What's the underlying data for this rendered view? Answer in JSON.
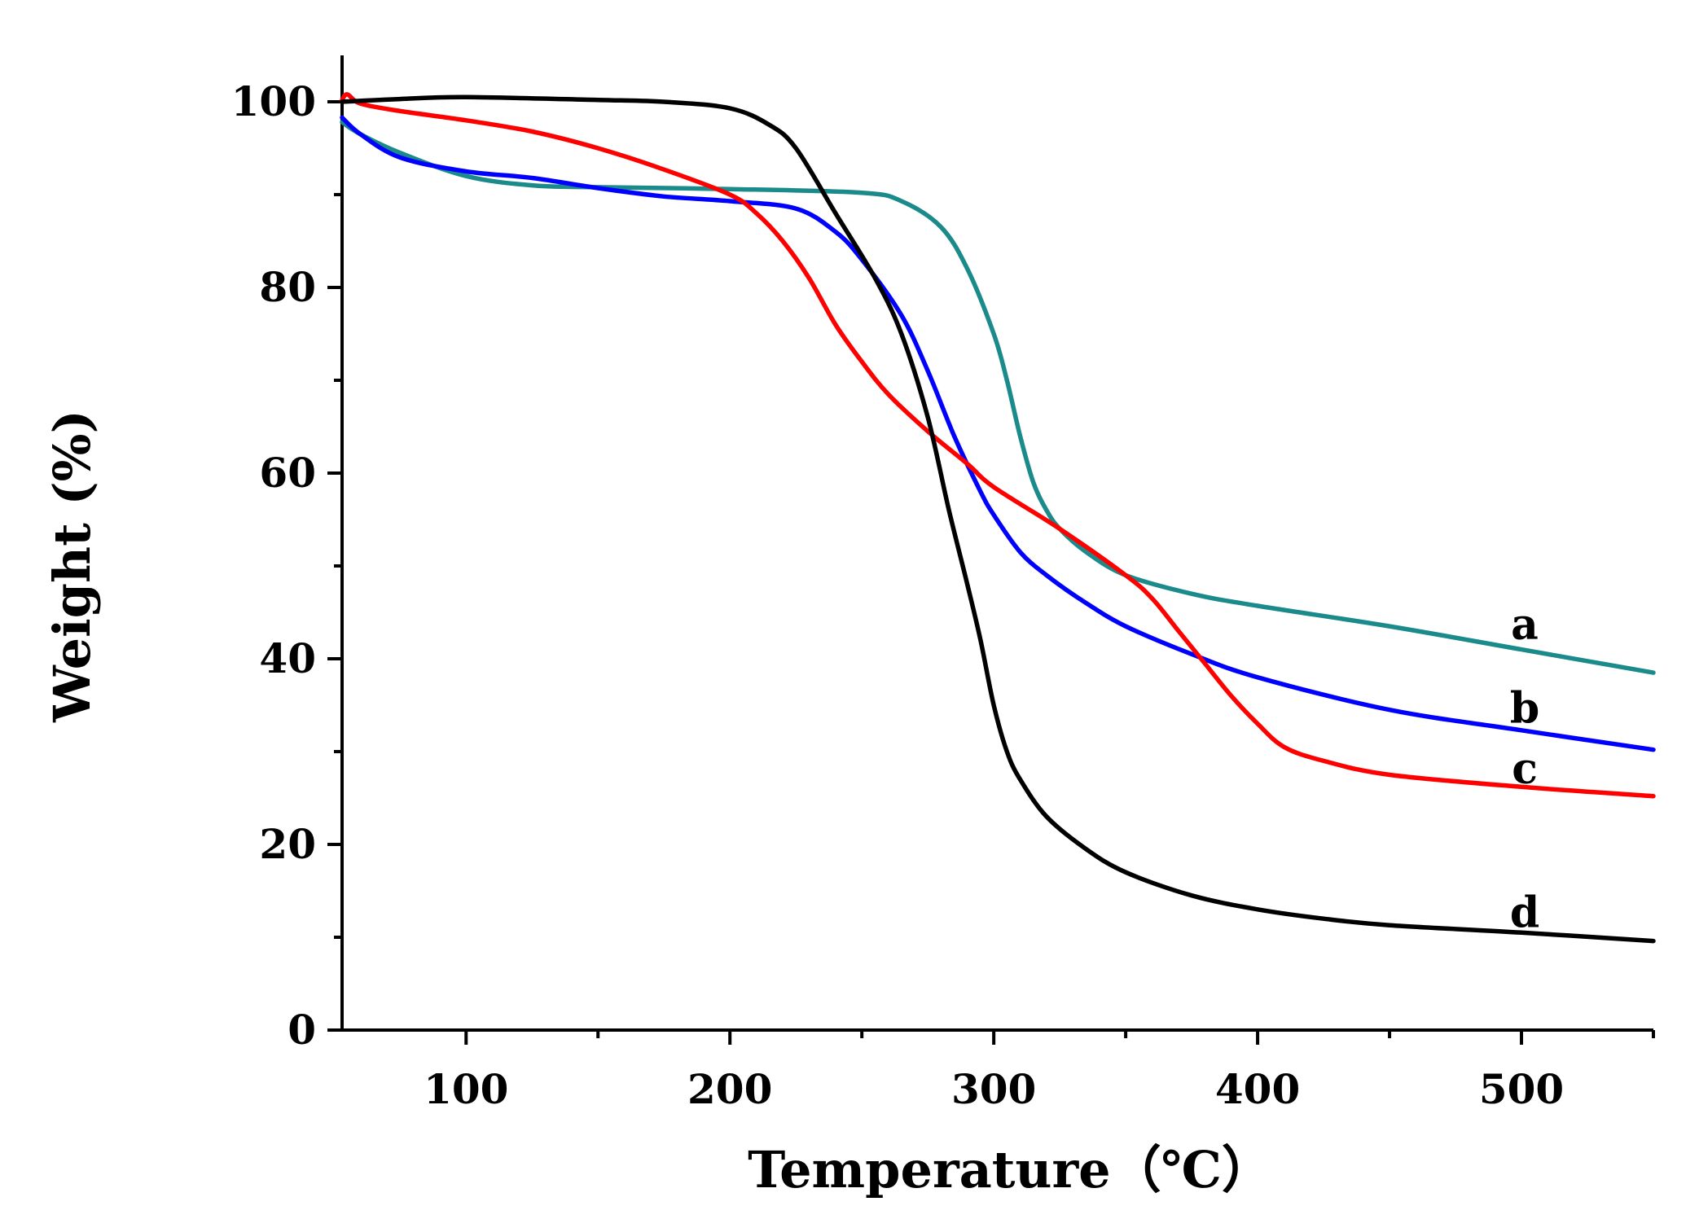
{
  "chart_data": {
    "type": "line",
    "title": "",
    "xlabel": "Temperature（℃）",
    "ylabel": "Weight (%)",
    "xlim": [
      53,
      550
    ],
    "ylim": [
      0,
      105
    ],
    "xticks": [
      100,
      200,
      300,
      400,
      500
    ],
    "yticks": [
      0,
      20,
      40,
      60,
      80,
      100
    ],
    "xtick_labels": [
      "100",
      "200",
      "300",
      "400",
      "500"
    ],
    "ytick_labels": [
      "0",
      "20",
      "40",
      "60",
      "80",
      "100"
    ],
    "grid": false,
    "series": [
      {
        "name": "a",
        "color": "#1b8a8a",
        "x": [
          53,
          60,
          75,
          100,
          125,
          150,
          200,
          250,
          265,
          280,
          290,
          300,
          305,
          310,
          315,
          320,
          325,
          335,
          350,
          375,
          400,
          450,
          500,
          550
        ],
        "y": [
          97.8,
          96.5,
          94.5,
          92.0,
          91.0,
          90.8,
          90.6,
          90.2,
          89.3,
          86.5,
          82.0,
          75.0,
          70.0,
          64.0,
          59.0,
          56.0,
          54.0,
          51.5,
          49.0,
          47.0,
          45.7,
          43.5,
          41.0,
          38.5
        ]
      },
      {
        "name": "b",
        "color": "#0000ff",
        "x": [
          53,
          60,
          75,
          100,
          125,
          150,
          175,
          200,
          225,
          240,
          250,
          265,
          275,
          285,
          295,
          300,
          310,
          320,
          335,
          350,
          375,
          400,
          450,
          500,
          550
        ],
        "y": [
          98.3,
          96.5,
          94.0,
          92.5,
          91.8,
          90.7,
          89.8,
          89.3,
          88.5,
          86.0,
          83.0,
          77.0,
          71.0,
          64.0,
          58.0,
          55.5,
          51.5,
          49.0,
          46.0,
          43.5,
          40.5,
          38.0,
          34.5,
          32.3,
          30.2
        ]
      },
      {
        "name": "c",
        "color": "#ff0000",
        "x": [
          53,
          55,
          60,
          75,
          100,
          125,
          150,
          175,
          200,
          210,
          220,
          230,
          240,
          250,
          260,
          275,
          290,
          300,
          325,
          350,
          360,
          370,
          380,
          390,
          400,
          410,
          425,
          450,
          500,
          550
        ],
        "y": [
          100.2,
          100.8,
          99.8,
          99.0,
          98.0,
          96.8,
          95.0,
          92.7,
          90.0,
          88.0,
          85.0,
          81.0,
          76.0,
          72.0,
          68.5,
          64.5,
          61.0,
          58.5,
          54.0,
          49.0,
          46.5,
          43.0,
          39.5,
          36.0,
          33.0,
          30.5,
          29.0,
          27.5,
          26.2,
          25.2
        ]
      },
      {
        "name": "d",
        "color": "#000000",
        "x": [
          53,
          75,
          100,
          150,
          175,
          200,
          215,
          225,
          240,
          255,
          265,
          275,
          283,
          290,
          295,
          300,
          305,
          310,
          320,
          335,
          350,
          375,
          400,
          425,
          450,
          500,
          550
        ],
        "y": [
          100.0,
          100.3,
          100.5,
          100.2,
          100.0,
          99.3,
          97.5,
          95.0,
          88.0,
          81.0,
          75.0,
          66.0,
          56.0,
          48.0,
          42.0,
          35.0,
          30.0,
          27.0,
          23.0,
          19.5,
          17.0,
          14.5,
          13.0,
          12.0,
          11.3,
          10.5,
          9.6
        ]
      }
    ]
  }
}
